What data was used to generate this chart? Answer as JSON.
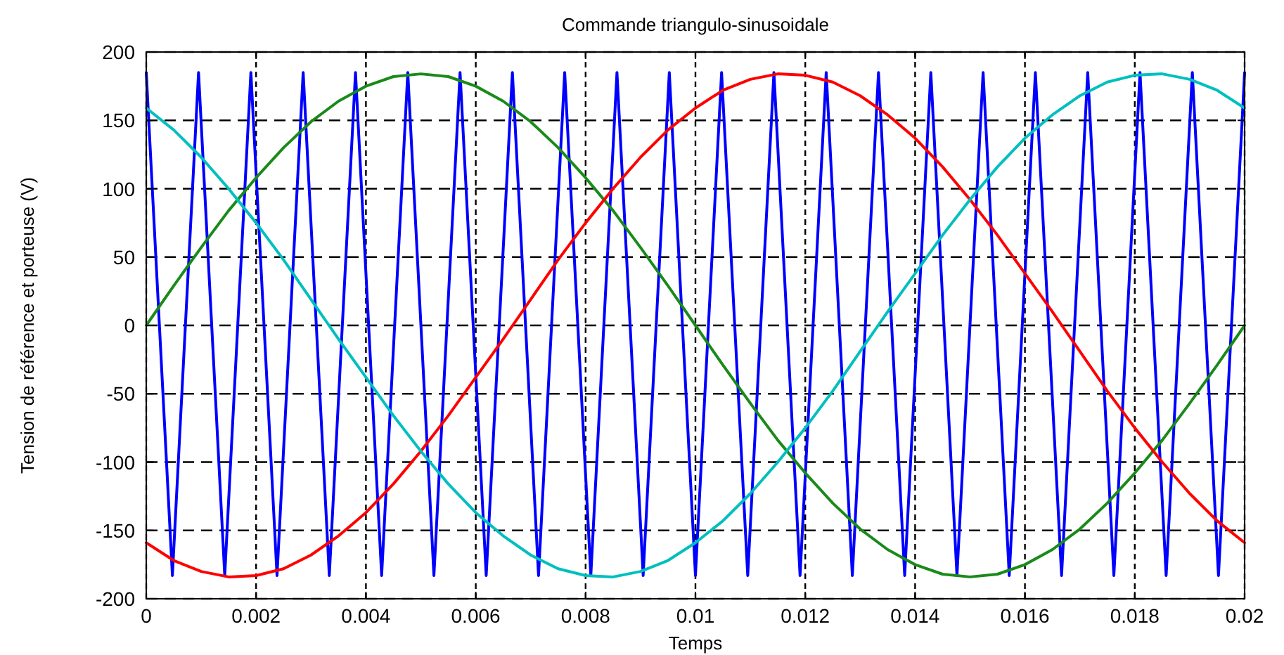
{
  "chart_data": {
    "type": "line",
    "title": "Commande triangulo-sinusoidale",
    "xlabel": "Temps",
    "ylabel": "Tension de référence et porteuse (V)",
    "xlim": [
      0,
      0.02
    ],
    "ylim": [
      -200,
      200
    ],
    "xticks": [
      0,
      0.002,
      0.004,
      0.006,
      0.008,
      0.01,
      0.012,
      0.014,
      0.016,
      0.018,
      0.02
    ],
    "yticks": [
      -200,
      -150,
      -100,
      -50,
      0,
      50,
      100,
      150,
      200
    ],
    "grid": true,
    "line_style": "solid",
    "marker": "none",
    "series": [
      {
        "color": "#0000ff",
        "x": [
          0,
          0.000476,
          0.000952,
          0.001429,
          0.001905,
          0.002381,
          0.002857,
          0.003333,
          0.00381,
          0.004286,
          0.004762,
          0.005238,
          0.005714,
          0.00619,
          0.006667,
          0.007143,
          0.007619,
          0.008095,
          0.008571,
          0.009048,
          0.009524,
          0.01,
          0.010476,
          0.010952,
          0.011429,
          0.011905,
          0.012381,
          0.012857,
          0.013333,
          0.01381,
          0.014286,
          0.014762,
          0.015238,
          0.015714,
          0.01619,
          0.016667,
          0.017143,
          0.017619,
          0.018095,
          0.018571,
          0.019048,
          0.019524,
          0.02
        ],
        "values": [
          185,
          -183,
          185,
          -183,
          185,
          -183,
          185,
          -183,
          185,
          -183,
          185,
          -183,
          185,
          -183,
          185,
          -183,
          185,
          -183,
          185,
          -183,
          185,
          -183,
          185,
          -183,
          185,
          -183,
          185,
          -183,
          185,
          -183,
          185,
          -183,
          185,
          -183,
          185,
          -183,
          185,
          -183,
          185,
          -183,
          185,
          -183,
          185
        ]
      },
      {
        "color": "#1a8a1a",
        "x": [
          0,
          0.0005,
          0.001,
          0.0015,
          0.002,
          0.0025,
          0.003,
          0.0035,
          0.004,
          0.0045,
          0.005,
          0.0055,
          0.006,
          0.0065,
          0.007,
          0.0075,
          0.008,
          0.0085,
          0.009,
          0.0095,
          0.01,
          0.0105,
          0.011,
          0.0115,
          0.012,
          0.0125,
          0.013,
          0.0135,
          0.014,
          0.0145,
          0.015,
          0.0155,
          0.016,
          0.0165,
          0.017,
          0.0175,
          0.018,
          0.0185,
          0.019,
          0.0195,
          0.02
        ],
        "values": [
          0,
          29,
          57,
          84,
          108,
          130,
          149,
          164,
          175,
          182,
          184,
          182,
          175,
          164,
          149,
          130,
          108,
          84,
          57,
          29,
          0,
          -29,
          -57,
          -84,
          -108,
          -130,
          -149,
          -164,
          -175,
          -182,
          -184,
          -182,
          -175,
          -164,
          -149,
          -130,
          -108,
          -84,
          -57,
          -29,
          0
        ]
      },
      {
        "color": "#ff0000",
        "x": [
          0,
          0.0005,
          0.001,
          0.0015,
          0.002,
          0.0025,
          0.003,
          0.0035,
          0.004,
          0.0045,
          0.005,
          0.0055,
          0.006,
          0.0065,
          0.007,
          0.0075,
          0.008,
          0.0085,
          0.009,
          0.0095,
          0.01,
          0.0105,
          0.011,
          0.0115,
          0.012,
          0.0125,
          0.013,
          0.0135,
          0.014,
          0.0145,
          0.015,
          0.0155,
          0.016,
          0.0165,
          0.017,
          0.0175,
          0.018,
          0.0185,
          0.019,
          0.0195,
          0.02
        ],
        "values": [
          -159,
          -172,
          -180,
          -184,
          -183,
          -178,
          -168,
          -154,
          -137,
          -116,
          -92,
          -66,
          -38,
          -10,
          19,
          48,
          75,
          100,
          123,
          143,
          159,
          172,
          180,
          184,
          183,
          178,
          168,
          154,
          137,
          116,
          92,
          66,
          38,
          10,
          -19,
          -48,
          -75,
          -100,
          -123,
          -143,
          -159
        ]
      },
      {
        "color": "#00bfbf",
        "x": [
          0,
          0.0005,
          0.001,
          0.0015,
          0.002,
          0.0025,
          0.003,
          0.0035,
          0.004,
          0.0045,
          0.005,
          0.0055,
          0.006,
          0.0065,
          0.007,
          0.0075,
          0.008,
          0.0085,
          0.009,
          0.0095,
          0.01,
          0.0105,
          0.011,
          0.0115,
          0.012,
          0.0125,
          0.013,
          0.0135,
          0.014,
          0.0145,
          0.015,
          0.0155,
          0.016,
          0.0165,
          0.017,
          0.0175,
          0.018,
          0.0185,
          0.019,
          0.0195,
          0.02
        ],
        "values": [
          159,
          143,
          123,
          100,
          75,
          48,
          19,
          -10,
          -38,
          -66,
          -92,
          -116,
          -137,
          -154,
          -168,
          -178,
          -183,
          -184,
          -180,
          -172,
          -159,
          -143,
          -123,
          -100,
          -75,
          -48,
          -19,
          10,
          38,
          66,
          92,
          116,
          137,
          154,
          168,
          178,
          183,
          184,
          180,
          172,
          159
        ]
      }
    ]
  }
}
